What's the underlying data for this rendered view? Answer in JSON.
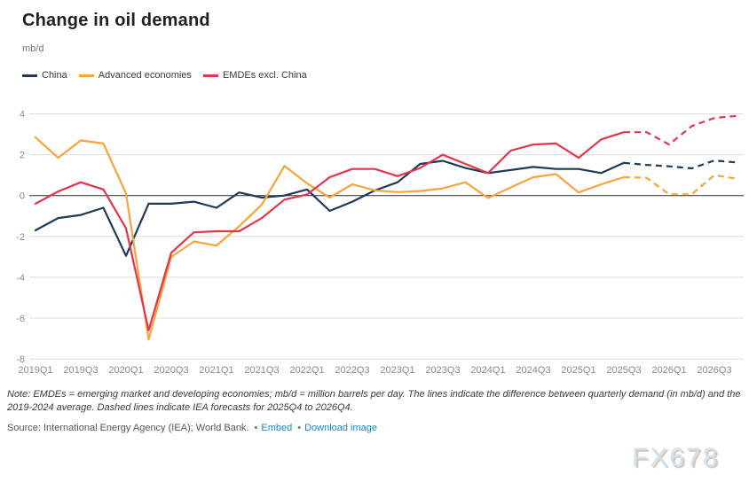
{
  "header": {
    "title": "Change in oil demand",
    "unit": "mb/d"
  },
  "legend": {
    "items": [
      {
        "label": "China",
        "color": "#1d3a56"
      },
      {
        "label": "Advanced economies",
        "color": "#f8a33c"
      },
      {
        "label": "EMDEs excl. China",
        "color": "#e4344c"
      }
    ]
  },
  "chart_data": {
    "type": "line",
    "title": "Change in oil demand",
    "ylabel": "mb/d",
    "x_labels": [
      "2019Q1",
      "2019Q2",
      "2019Q3",
      "2019Q4",
      "2020Q1",
      "2020Q2",
      "2020Q3",
      "2020Q4",
      "2021Q1",
      "2021Q2",
      "2021Q3",
      "2021Q4",
      "2022Q1",
      "2022Q2",
      "2022Q3",
      "2022Q4",
      "2023Q1",
      "2023Q2",
      "2023Q3",
      "2023Q4",
      "2024Q1",
      "2024Q2",
      "2024Q3",
      "2024Q4",
      "2025Q1",
      "2025Q2",
      "2025Q3",
      "2025Q4",
      "2026Q1",
      "2026Q2",
      "2026Q3",
      "2026Q4"
    ],
    "x_tick_step": 2,
    "yticks": [
      4,
      2,
      0,
      -2,
      -4,
      -6,
      -8
    ],
    "ylim": [
      -8,
      4
    ],
    "grid": "horizontal-only",
    "zero_line": true,
    "grid_color": "#dcdcdc",
    "zero_line_color": "#2b2b2b",
    "forecast_start_index": 27,
    "forecast_note": "Dashed segments are IEA forecasts for 2025Q4 to 2026Q4",
    "series": [
      {
        "name": "China",
        "color": "#1d3a56",
        "values": [
          -1.7,
          -1.1,
          -0.95,
          -0.6,
          -2.95,
          -0.4,
          -0.4,
          -0.3,
          -0.6,
          0.15,
          -0.1,
          0.0,
          0.3,
          -0.75,
          -0.3,
          0.25,
          0.65,
          1.55,
          1.7,
          1.35,
          1.1,
          1.25,
          1.4,
          1.3,
          1.3,
          1.1,
          1.6,
          1.5,
          1.43,
          1.33,
          1.72,
          1.62
        ]
      },
      {
        "name": "Advanced economies",
        "color": "#f8a33c",
        "values": [
          2.85,
          1.85,
          2.7,
          2.55,
          0.1,
          -7.05,
          -3.0,
          -2.25,
          -2.45,
          -1.5,
          -0.45,
          1.45,
          0.6,
          -0.1,
          0.55,
          0.25,
          0.17,
          0.22,
          0.35,
          0.65,
          -0.12,
          0.4,
          0.9,
          1.05,
          0.15,
          0.55,
          0.9,
          0.87,
          0.06,
          0.06,
          1.0,
          0.82
        ]
      },
      {
        "name": "EMDEs excl. China",
        "color": "#e4344c",
        "values": [
          -0.4,
          0.2,
          0.65,
          0.3,
          -1.6,
          -6.6,
          -2.8,
          -1.8,
          -1.75,
          -1.75,
          -1.1,
          -0.2,
          0.05,
          0.9,
          1.3,
          1.3,
          0.95,
          1.35,
          2.0,
          1.55,
          1.1,
          2.2,
          2.5,
          2.55,
          1.85,
          2.75,
          3.1,
          3.1,
          2.5,
          3.4,
          3.8,
          3.9
        ]
      }
    ]
  },
  "footer": {
    "note": "Note: EMDEs = emerging market and developing economies; mb/d = million barrels per day. The lines indicate the difference between quarterly demand (in mb/d) and the 2019-2024 average. Dashed lines indicate IEA forecasts for 2025Q4 to 2026Q4.",
    "source": "Source: International Energy Agency (IEA); World Bank.",
    "bullet": "•",
    "links": [
      {
        "label": "Embed"
      },
      {
        "label": "Download image"
      }
    ],
    "watermark": "FX678"
  }
}
